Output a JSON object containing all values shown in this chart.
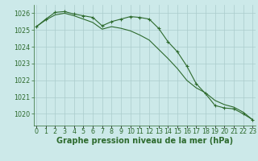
{
  "xlabel": "Graphe pression niveau de la mer (hPa)",
  "hours": [
    0,
    1,
    2,
    3,
    4,
    5,
    6,
    7,
    8,
    9,
    10,
    11,
    12,
    13,
    14,
    15,
    16,
    17,
    18,
    19,
    20,
    21,
    22,
    23
  ],
  "line1": [
    1025.2,
    1025.65,
    1026.05,
    1026.1,
    1025.95,
    1025.85,
    1025.75,
    1025.25,
    1025.5,
    1025.65,
    1025.8,
    1025.75,
    1025.65,
    1025.1,
    1024.3,
    1023.7,
    1022.85,
    1021.8,
    1021.2,
    1020.5,
    1020.35,
    1020.3,
    1020.0,
    1019.65
  ],
  "line2": [
    1025.2,
    1025.6,
    1025.9,
    1026.0,
    1025.85,
    1025.65,
    1025.45,
    1025.05,
    1025.2,
    1025.1,
    1024.95,
    1024.7,
    1024.4,
    1023.85,
    1023.3,
    1022.7,
    1022.0,
    1021.55,
    1021.25,
    1020.8,
    1020.55,
    1020.4,
    1020.1,
    1019.65
  ],
  "line_color": "#2d6a2d",
  "bg_color": "#cce9e9",
  "grid_color": "#aacccc",
  "ylim": [
    1019.3,
    1026.5
  ],
  "yticks": [
    1020,
    1021,
    1022,
    1023,
    1024,
    1025,
    1026
  ],
  "tick_fontsize": 5.8,
  "label_fontsize": 7.0
}
